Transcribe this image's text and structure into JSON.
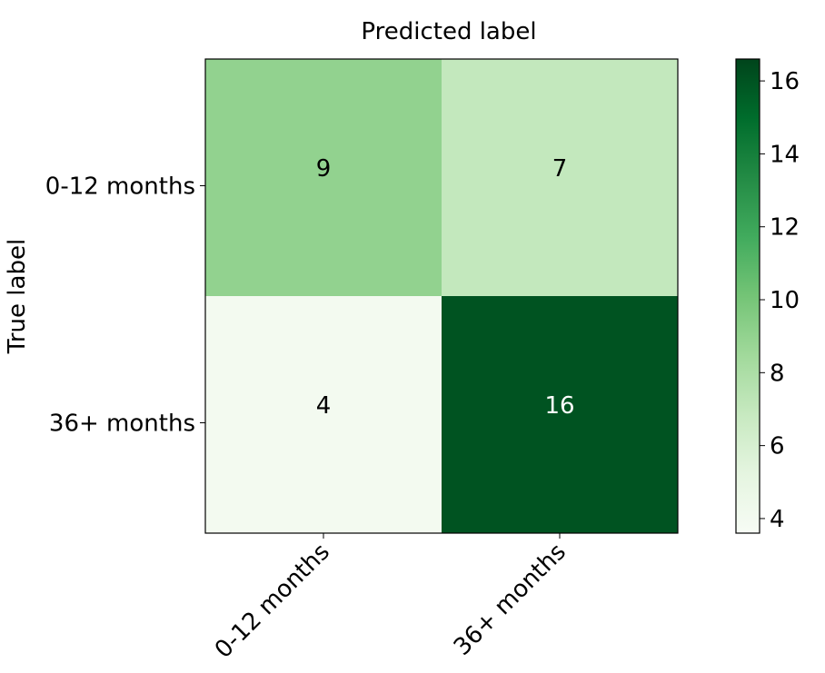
{
  "chart_data": {
    "type": "heatmap",
    "title": "Predicted label",
    "ylabel": "True label",
    "x_categories": [
      "0-12 months",
      "36+ months"
    ],
    "y_categories": [
      "0-12 months",
      "36+ months"
    ],
    "values": [
      [
        9,
        7
      ],
      [
        4,
        16
      ]
    ],
    "colormap": "Greens",
    "color_range": [
      3.6,
      16.6
    ],
    "colorbar_ticks": [
      4,
      6,
      8,
      10,
      12,
      14,
      16
    ],
    "colors": {
      "cell_9": "#94d390",
      "cell_7": "#c9eac2",
      "cell_4": "#f6fcf4",
      "cell_16": "#03471c",
      "text_on_dark": "#ffffff",
      "text_on_light": "#000000"
    }
  }
}
